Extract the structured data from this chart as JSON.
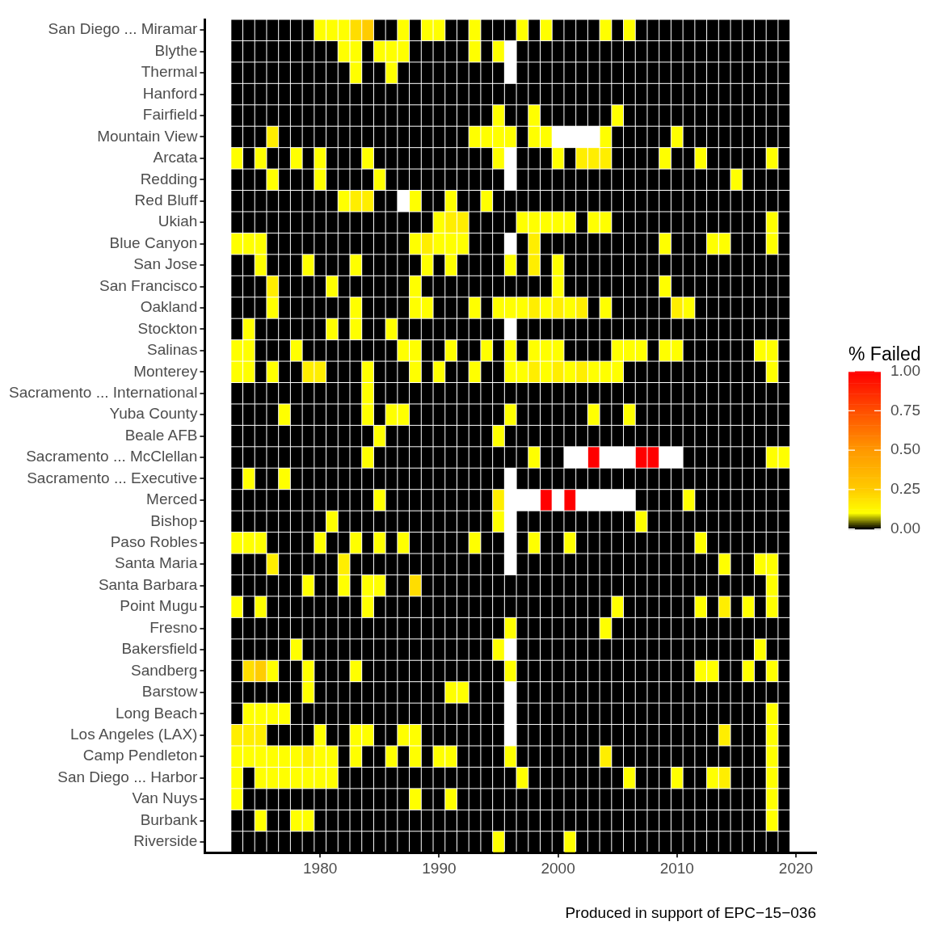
{
  "chart_data": {
    "type": "heatmap",
    "x": [
      1973,
      1974,
      1975,
      1976,
      1977,
      1978,
      1979,
      1980,
      1981,
      1982,
      1983,
      1984,
      1985,
      1986,
      1987,
      1988,
      1989,
      1990,
      1991,
      1992,
      1993,
      1994,
      1995,
      1996,
      1997,
      1998,
      1999,
      2000,
      2001,
      2002,
      2003,
      2004,
      2005,
      2006,
      2007,
      2008,
      2009,
      2010,
      2011,
      2012,
      2013,
      2014,
      2015,
      2016,
      2017,
      2018,
      2019
    ],
    "xlim": [
      1970.3,
      2021.7
    ],
    "xticks": [
      1980,
      1990,
      2000,
      2010,
      2020
    ],
    "y_categories": [
      "San Diego ... Miramar",
      "Blythe",
      "Thermal",
      "Hanford",
      "Fairfield",
      "Mountain View",
      "Arcata",
      "Redding",
      "Red Bluff",
      "Ukiah",
      "Blue Canyon",
      "San Jose",
      "San Francisco",
      "Oakland",
      "Stockton",
      "Salinas",
      "Monterey",
      "Sacramento ... International",
      "Yuba County",
      "Beale AFB",
      "Sacramento ... McClellan",
      "Sacramento ... Executive",
      "Merced",
      "Bishop",
      "Paso Robles",
      "Santa Maria",
      "Santa Barbara",
      "Point Mugu",
      "Fresno",
      "Bakersfield",
      "Sandberg",
      "Barstow",
      "Long Beach",
      "Los Angeles (LAX)",
      "Camp Pendleton",
      "San Diego ... Harbor",
      "Van Nuys",
      "Burbank",
      "Riverside"
    ],
    "cells": [
      [
        0,
        0,
        0,
        0,
        0,
        0,
        0,
        0.1,
        0.1,
        0.1,
        0.2,
        0.25,
        0,
        0,
        0.1,
        0,
        0.1,
        0.1,
        0,
        0,
        0.1,
        0,
        0,
        0,
        0.1,
        0,
        0.1,
        0,
        0,
        0,
        0,
        0.1,
        0,
        0.1,
        0,
        0,
        0,
        0,
        0,
        0,
        0,
        0,
        0,
        0,
        0,
        0,
        0
      ],
      [
        0,
        0,
        0,
        0,
        0,
        0,
        0,
        0,
        0,
        0.1,
        0.1,
        0,
        0.1,
        0.1,
        0.1,
        0,
        0,
        0,
        0,
        0,
        0.1,
        0,
        0.1,
        null,
        0,
        0,
        0,
        0,
        0,
        0,
        0,
        0,
        0,
        0,
        0,
        0,
        0,
        0,
        0,
        0,
        0,
        0,
        0,
        0,
        0,
        0,
        0
      ],
      [
        0,
        0,
        0,
        0,
        0,
        0,
        0,
        0,
        0,
        0,
        0.1,
        0,
        0,
        0.1,
        0,
        0,
        0,
        0,
        0,
        0,
        0,
        0,
        0,
        null,
        0,
        0,
        0,
        0,
        0,
        0,
        0,
        0,
        0,
        0,
        0,
        0,
        0,
        0,
        0,
        0,
        0,
        0,
        0,
        0,
        0,
        0,
        0
      ],
      [
        0,
        0,
        0,
        0,
        0,
        0,
        0,
        0,
        0,
        0,
        0,
        0,
        0,
        0,
        0,
        0,
        0,
        0,
        0,
        0,
        0,
        0,
        0,
        0,
        0,
        0,
        0,
        0,
        0,
        0,
        0,
        0,
        0,
        0,
        0,
        0,
        0,
        0,
        0,
        0,
        0,
        0,
        0,
        0,
        0,
        0,
        0
      ],
      [
        0,
        0,
        0,
        0,
        0,
        0,
        0,
        0,
        0,
        0,
        0,
        0,
        0,
        0,
        0,
        0,
        0,
        0,
        0,
        0,
        0,
        0,
        0.1,
        0,
        0,
        0.1,
        0,
        0,
        0,
        0,
        0,
        0,
        0.1,
        0,
        0,
        0,
        0,
        0,
        0,
        0,
        0,
        0,
        0,
        0,
        0,
        0,
        0
      ],
      [
        0,
        0,
        0,
        0.15,
        0,
        0,
        0,
        0,
        0,
        0,
        0,
        0,
        0,
        0,
        0,
        0,
        0,
        0,
        0,
        0,
        0.1,
        0.1,
        0.1,
        0.1,
        0,
        0.1,
        0.1,
        null,
        null,
        null,
        null,
        0.1,
        0,
        0,
        0,
        0,
        0,
        0.1,
        0,
        0,
        0,
        0,
        0,
        0,
        0,
        0,
        0
      ],
      [
        0.1,
        0,
        0.1,
        0,
        0,
        0.1,
        0,
        0.1,
        0,
        0,
        0,
        0.1,
        0,
        0,
        0,
        0,
        0,
        0,
        0,
        0,
        0,
        0,
        0.1,
        null,
        0,
        0,
        0,
        0.1,
        0,
        0.15,
        0.15,
        0.15,
        0,
        0,
        0,
        0,
        0.1,
        0,
        0,
        0.1,
        0,
        0,
        0,
        0,
        0,
        0.1,
        0
      ],
      [
        0,
        0,
        0,
        0.1,
        0,
        0,
        0,
        0.1,
        0,
        0,
        0,
        0,
        0.1,
        0,
        0,
        0,
        0,
        0,
        0,
        0,
        0,
        0,
        0,
        null,
        0,
        0,
        0,
        0,
        0,
        0,
        0,
        0,
        0,
        0,
        0,
        0,
        0,
        0,
        0,
        0,
        0,
        0,
        0.1,
        0,
        0,
        0,
        0
      ],
      [
        0,
        0,
        0,
        0,
        0,
        0,
        0,
        0,
        0,
        0.1,
        0.15,
        0.15,
        0,
        0,
        null,
        0.1,
        0,
        0,
        0.1,
        0,
        0,
        0.1,
        0,
        0,
        0,
        0,
        0,
        0,
        0,
        0,
        0,
        0,
        0,
        0,
        0,
        0,
        0,
        0,
        0,
        0,
        0,
        0,
        0,
        0,
        0,
        0,
        0
      ],
      [
        0,
        0,
        0,
        0,
        0,
        0,
        0,
        0,
        0,
        0,
        0,
        0,
        0,
        0,
        0,
        0,
        0,
        0.1,
        0.15,
        0.15,
        0,
        0,
        0,
        0,
        0.1,
        0.1,
        0.1,
        0.1,
        0.1,
        0,
        0.1,
        0.1,
        0,
        0,
        0,
        0,
        0,
        0,
        0,
        0,
        0,
        0,
        0,
        0,
        0,
        0.1,
        0
      ],
      [
        0.1,
        0.1,
        0.1,
        0,
        0,
        0,
        0,
        0,
        0,
        0,
        0,
        0,
        0,
        0,
        0,
        0.1,
        0.15,
        0.1,
        0.1,
        0.1,
        0,
        0,
        0,
        null,
        0,
        0.15,
        0,
        0,
        0,
        0,
        0,
        0,
        0,
        0,
        0,
        0,
        0.1,
        0,
        0,
        0,
        0.1,
        0.1,
        0,
        0,
        0,
        0.1,
        0
      ],
      [
        0,
        0,
        0.1,
        0,
        0,
        0,
        0.1,
        0,
        0,
        0,
        0.1,
        0,
        0,
        0,
        0,
        0,
        0.1,
        0,
        0.1,
        0,
        0,
        0,
        0,
        0.1,
        0,
        0.15,
        0,
        0.1,
        0,
        0,
        0,
        0,
        0,
        0,
        0,
        0,
        0,
        0,
        0,
        0,
        0,
        0,
        0,
        0,
        0,
        0,
        0
      ],
      [
        0,
        0,
        0,
        0.15,
        0,
        0,
        0,
        0,
        0.1,
        0,
        0,
        0,
        0,
        0,
        0,
        0.1,
        0,
        0,
        0,
        0,
        0,
        0,
        0,
        0,
        0,
        0,
        0,
        0.1,
        0,
        0,
        0,
        0,
        0,
        0,
        0,
        0,
        0.1,
        0,
        0,
        0,
        0,
        0,
        0,
        0,
        0,
        0,
        0
      ],
      [
        0,
        0,
        0,
        0.1,
        0,
        0,
        0,
        0,
        0,
        0,
        0.1,
        0,
        0,
        0,
        0,
        0.1,
        0.1,
        0,
        0,
        0,
        0.1,
        0,
        0.1,
        0.1,
        0.1,
        0.15,
        0.1,
        0.15,
        0.1,
        0.15,
        0,
        0.1,
        0,
        0,
        0,
        0,
        0,
        0.15,
        0.1,
        0,
        0,
        0,
        0,
        0,
        0,
        0,
        0
      ],
      [
        0,
        0.1,
        0,
        0,
        0,
        0,
        0,
        0,
        0.1,
        0,
        0.1,
        0,
        0,
        0.1,
        0,
        0,
        0,
        0,
        0,
        0,
        0,
        0,
        0,
        null,
        0,
        0,
        0,
        0,
        0,
        0,
        0,
        0,
        0,
        0,
        0,
        0,
        0,
        0,
        0,
        0,
        0,
        0,
        0,
        0,
        0,
        0,
        0
      ],
      [
        0.1,
        0.1,
        0,
        0,
        0,
        0.1,
        0,
        0,
        0,
        0,
        0,
        0,
        0,
        0,
        0.1,
        0.1,
        0,
        0,
        0.1,
        0,
        0,
        0.1,
        0,
        0.1,
        0,
        0.1,
        0.1,
        0.1,
        0,
        0,
        0,
        0,
        0.1,
        0.1,
        0.1,
        0,
        0.1,
        0.1,
        0,
        0,
        0,
        0,
        0,
        0,
        0.1,
        0.1,
        0
      ],
      [
        0.1,
        0.1,
        0,
        0.1,
        0,
        0,
        0.15,
        0.15,
        0,
        0,
        0,
        0.1,
        0,
        0,
        0,
        0.1,
        0,
        0.1,
        0,
        0,
        0.1,
        0,
        0,
        0.1,
        0.1,
        0.15,
        0.1,
        0.15,
        0.1,
        0.15,
        0.1,
        0.1,
        0.1,
        0,
        0,
        0,
        0,
        0,
        0,
        0,
        0,
        0,
        0,
        0,
        0,
        0.1,
        0
      ],
      [
        0,
        0,
        0,
        0,
        0,
        0,
        0,
        0,
        0,
        0,
        0,
        0.1,
        0,
        0,
        0,
        0,
        0,
        0,
        0,
        0,
        0,
        0,
        0,
        0,
        0,
        0,
        0,
        0,
        0,
        0,
        0,
        0,
        0,
        0,
        0,
        0,
        0,
        0,
        0,
        0,
        0,
        0,
        0,
        0,
        0,
        0,
        0
      ],
      [
        0,
        0,
        0,
        0,
        0.1,
        0,
        0,
        0,
        0,
        0,
        0,
        0.1,
        0,
        0.1,
        0.1,
        0,
        0,
        0,
        0,
        0,
        0,
        0,
        0,
        0.1,
        0,
        0,
        0,
        0,
        0,
        0,
        0.1,
        0,
        0,
        0.1,
        0,
        0,
        0,
        0,
        0,
        0,
        0,
        0,
        0,
        0,
        0,
        0,
        0
      ],
      [
        0,
        0,
        0,
        0,
        0,
        0,
        0,
        0,
        0,
        0,
        0,
        0,
        0.1,
        0,
        0,
        0,
        0,
        0,
        0,
        0,
        0,
        0,
        0.1,
        0,
        0,
        0,
        0,
        0,
        0,
        0,
        0,
        0,
        0,
        0,
        0,
        0,
        0,
        0,
        0,
        0,
        0,
        0,
        0,
        0,
        0,
        0,
        0
      ],
      [
        0,
        0,
        0,
        0,
        0,
        0,
        0,
        0,
        0,
        0,
        0,
        0.1,
        0,
        0,
        0,
        0,
        0,
        0,
        0,
        0,
        0,
        0,
        0,
        0,
        0,
        0.1,
        0,
        0,
        null,
        null,
        1,
        null,
        null,
        null,
        1,
        1,
        null,
        null,
        0,
        0,
        0,
        0,
        0,
        0,
        0,
        0.1,
        0.1
      ],
      [
        0,
        0.1,
        0,
        0,
        0.1,
        0,
        0,
        0,
        0,
        0,
        0,
        0,
        0,
        0,
        0,
        0,
        0,
        0,
        0,
        0,
        0,
        0,
        0,
        null,
        0,
        0,
        0,
        0,
        0,
        0,
        0,
        0,
        0,
        0,
        0,
        0,
        0,
        0,
        0,
        0,
        0,
        0,
        0,
        0,
        0,
        0,
        0
      ],
      [
        0,
        0,
        0,
        0,
        0,
        0,
        0,
        0,
        0,
        0,
        0,
        0,
        0.1,
        0,
        0,
        0,
        0,
        0,
        0,
        0,
        0,
        0,
        0.15,
        null,
        null,
        null,
        1,
        null,
        1,
        null,
        null,
        null,
        null,
        null,
        0,
        0,
        0,
        0,
        0.1,
        0,
        0,
        0,
        0,
        0,
        0,
        0,
        0
      ],
      [
        0,
        0,
        0,
        0,
        0,
        0,
        0,
        0,
        0.1,
        0,
        0,
        0,
        0,
        0,
        0,
        0,
        0,
        0,
        0,
        0,
        0,
        0,
        0.1,
        null,
        0,
        0,
        0,
        0,
        0,
        0,
        0,
        0,
        0,
        0,
        0.1,
        0,
        0,
        0,
        0,
        0,
        0,
        0,
        0,
        0,
        0,
        0,
        0
      ],
      [
        0.1,
        0.1,
        0.1,
        0,
        0,
        0,
        0,
        0.1,
        0,
        0,
        0.1,
        0,
        0.1,
        0,
        0.1,
        0,
        0,
        0,
        0,
        0,
        0.1,
        0,
        0,
        null,
        0,
        0.1,
        0,
        0,
        0.1,
        0,
        0,
        0,
        0,
        0,
        0,
        0,
        0,
        0,
        0,
        0.1,
        0,
        0,
        0,
        0,
        0,
        0,
        0
      ],
      [
        0,
        0,
        0,
        0.15,
        0,
        0,
        0,
        0,
        0,
        0.15,
        0,
        0,
        0,
        0,
        0,
        0,
        0,
        0,
        0,
        0,
        0,
        0,
        0,
        null,
        0,
        0,
        0,
        0,
        0,
        0,
        0,
        0,
        0,
        0,
        0,
        0,
        0,
        0,
        0,
        0,
        0,
        0.1,
        0,
        0,
        0.1,
        0.1,
        0
      ],
      [
        0,
        0,
        0,
        0,
        0,
        0,
        0.1,
        0,
        0,
        0.1,
        0,
        0.1,
        0.1,
        0,
        0,
        0.2,
        0,
        0,
        0,
        0,
        0,
        0,
        0,
        0,
        0,
        0,
        0,
        0,
        0,
        0,
        0,
        0,
        0,
        0,
        0,
        0,
        0,
        0,
        0,
        0,
        0,
        0,
        0,
        0,
        0,
        0.1,
        0
      ],
      [
        0.1,
        0,
        0.1,
        0,
        0,
        0,
        0,
        0,
        0,
        0,
        0,
        0.1,
        0,
        0,
        0,
        0,
        0,
        0,
        0,
        0,
        0,
        0,
        0,
        0,
        0,
        0,
        0,
        0,
        0,
        0,
        0,
        0,
        0.1,
        0,
        0,
        0,
        0,
        0,
        0,
        0.1,
        0,
        0.15,
        0,
        0.1,
        0,
        0.1,
        0
      ],
      [
        0,
        0,
        0,
        0,
        0,
        0,
        0,
        0,
        0,
        0,
        0,
        0,
        0,
        0,
        0,
        0,
        0,
        0,
        0,
        0,
        0,
        0,
        0,
        0.1,
        0,
        0,
        0,
        0,
        0,
        0,
        0,
        0.1,
        0,
        0,
        0,
        0,
        0,
        0,
        0,
        0,
        0,
        0,
        0,
        0,
        0,
        0,
        0
      ],
      [
        0,
        0,
        0,
        0,
        0,
        0.1,
        0,
        0,
        0,
        0,
        0,
        0,
        0,
        0,
        0,
        0,
        0,
        0,
        0,
        0,
        0,
        0,
        0.1,
        null,
        0,
        0,
        0,
        0,
        0,
        0,
        0,
        0,
        0,
        0,
        0,
        0,
        0,
        0,
        0,
        0,
        0,
        0,
        0,
        0,
        0.1,
        0,
        0
      ],
      [
        0,
        0.2,
        0.25,
        0.1,
        0,
        0,
        0.1,
        0,
        0,
        0,
        0.1,
        0,
        0,
        0,
        0,
        0,
        0,
        0,
        0,
        0,
        0,
        0,
        0,
        0.1,
        0,
        0,
        0,
        0,
        0,
        0,
        0,
        0,
        0,
        0,
        0,
        0,
        0,
        0,
        0,
        0.1,
        0.1,
        0,
        0,
        0.1,
        0,
        0.1,
        0
      ],
      [
        0,
        0,
        0,
        0,
        0,
        0,
        0.1,
        0,
        0,
        0,
        0,
        0,
        0,
        0,
        0,
        0,
        0,
        0,
        0.1,
        0.1,
        0,
        0,
        0,
        null,
        0,
        0,
        0,
        0,
        0,
        0,
        0,
        0,
        0,
        0,
        0,
        0,
        0,
        0,
        0,
        0,
        0,
        0,
        0,
        0,
        0,
        0,
        0
      ],
      [
        0,
        0.1,
        0.1,
        0.1,
        0.1,
        0,
        0,
        0,
        0,
        0,
        0,
        0,
        0,
        0,
        0,
        0,
        0,
        0,
        0,
        0,
        0,
        0,
        0,
        null,
        0,
        0,
        0,
        0,
        0,
        0,
        0,
        0,
        0,
        0,
        0,
        0,
        0,
        0,
        0,
        0,
        0,
        0,
        0,
        0,
        0,
        0.1,
        0
      ],
      [
        0.15,
        0.15,
        0.15,
        0,
        0,
        0,
        0,
        0.1,
        0,
        0,
        0.1,
        0.1,
        0,
        0,
        0.1,
        0.1,
        0,
        0,
        0,
        0,
        0,
        0,
        0,
        null,
        0,
        0,
        0,
        0,
        0,
        0,
        0,
        0,
        0,
        0,
        0,
        0,
        0,
        0,
        0,
        0,
        0,
        0.15,
        0,
        0,
        0,
        0.1,
        0
      ],
      [
        0.1,
        0.1,
        0.1,
        0.1,
        0.1,
        0.1,
        0.15,
        0.1,
        0.1,
        0,
        0.1,
        0,
        0,
        0.1,
        0,
        0.1,
        0,
        0.1,
        0.1,
        0,
        0,
        0,
        0,
        0.1,
        0,
        0,
        0,
        0,
        0,
        0,
        0,
        0.15,
        0,
        0,
        0,
        0,
        0,
        0,
        0,
        0,
        0,
        0,
        0,
        0,
        0,
        0.1,
        0
      ],
      [
        0.1,
        0,
        0.1,
        0.1,
        0.1,
        0.1,
        0.1,
        0.1,
        0.1,
        0,
        0,
        0,
        0,
        0,
        0,
        0,
        0,
        0,
        0,
        0,
        0,
        0,
        0,
        0,
        0.1,
        0,
        0,
        0,
        0,
        0,
        0,
        0,
        0,
        0.1,
        0,
        0,
        0,
        0.1,
        0,
        0,
        0.1,
        0.15,
        0,
        0,
        0,
        0.1,
        0
      ],
      [
        0.1,
        0,
        0,
        0,
        0,
        0,
        0,
        0,
        0,
        0,
        0,
        0,
        0,
        0,
        0,
        0.1,
        0,
        0,
        0.1,
        0,
        0,
        0,
        0,
        0,
        0,
        0,
        0,
        0,
        0,
        0,
        0,
        0,
        0,
        0,
        0,
        0,
        0,
        0,
        0,
        0,
        0,
        0,
        0,
        0,
        0,
        0.1,
        0
      ],
      [
        0,
        0,
        0.1,
        0,
        0,
        0.1,
        0.1,
        0,
        0,
        0,
        0,
        0,
        0,
        0,
        0,
        0,
        0,
        0,
        0,
        0,
        0,
        0,
        0,
        0,
        0,
        0,
        0,
        0,
        0,
        0,
        0,
        0,
        0,
        0,
        0,
        0,
        0,
        0,
        0,
        0,
        0,
        0,
        0,
        0,
        0,
        0.1,
        0
      ],
      [
        0,
        0,
        0,
        0,
        0,
        0,
        0,
        0,
        0,
        0,
        0,
        0,
        0,
        0,
        0,
        0,
        0,
        0,
        0,
        0,
        0,
        0,
        0.1,
        0,
        0,
        0,
        0,
        0,
        0.1,
        0,
        0,
        0,
        0,
        0,
        0,
        0,
        0,
        0,
        0,
        0,
        0,
        0,
        0,
        0,
        0,
        0,
        0
      ]
    ],
    "clim": [
      0,
      1
    ],
    "cticks": [
      {
        "value": 0,
        "label": "0.00"
      },
      {
        "value": 0.25,
        "label": "0.25"
      },
      {
        "value": 0.5,
        "label": "0.50"
      },
      {
        "value": 0.75,
        "label": "0.75"
      },
      {
        "value": 1,
        "label": "1.00"
      }
    ],
    "legend_title": "% Failed",
    "annotations": [
      "Produced in support of EPC−15−036"
    ]
  }
}
